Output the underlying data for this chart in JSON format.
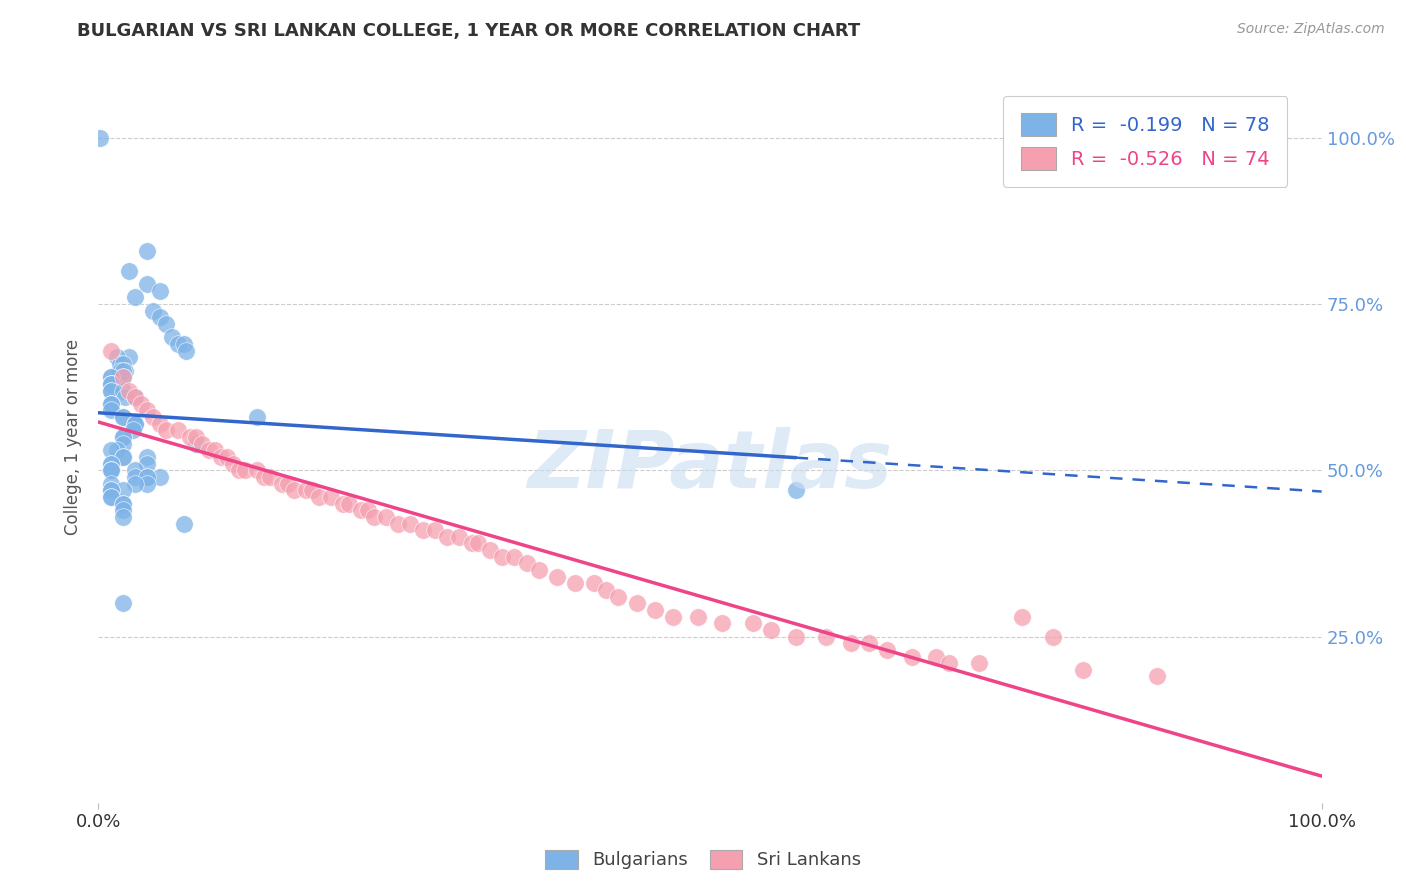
{
  "title": "BULGARIAN VS SRI LANKAN COLLEGE, 1 YEAR OR MORE CORRELATION CHART",
  "source_text": "Source: ZipAtlas.com",
  "ylabel": "College, 1 year or more",
  "blue_R": -0.199,
  "blue_N": 78,
  "pink_R": -0.526,
  "pink_N": 74,
  "blue_color": "#7EB3E8",
  "pink_color": "#F5A0B0",
  "blue_line_color": "#3366CC",
  "pink_line_color": "#EE4488",
  "background_color": "#FFFFFF",
  "grid_color": "#CCCCCC",
  "watermark": "ZIPatlas",
  "legend_label_blue": "Bulgarians",
  "legend_label_pink": "Sri Lankans",
  "blue_scatter_x": [
    0.001,
    0.04,
    0.025,
    0.04,
    0.05,
    0.03,
    0.045,
    0.05,
    0.055,
    0.06,
    0.065,
    0.07,
    0.072,
    0.025,
    0.015,
    0.018,
    0.02,
    0.022,
    0.018,
    0.02,
    0.02,
    0.01,
    0.01,
    0.012,
    0.01,
    0.01,
    0.01,
    0.01,
    0.01,
    0.02,
    0.022,
    0.03,
    0.01,
    0.01,
    0.01,
    0.01,
    0.13,
    0.02,
    0.02,
    0.03,
    0.03,
    0.03,
    0.028,
    0.02,
    0.02,
    0.08,
    0.02,
    0.015,
    0.01,
    0.02,
    0.02,
    0.04,
    0.04,
    0.01,
    0.01,
    0.01,
    0.01,
    0.01,
    0.03,
    0.04,
    0.03,
    0.05,
    0.04,
    0.04,
    0.01,
    0.03,
    0.02,
    0.57,
    0.01,
    0.01,
    0.01,
    0.01,
    0.02,
    0.02,
    0.02,
    0.02,
    0.07,
    0.02
  ],
  "blue_scatter_y": [
    1.0,
    0.83,
    0.8,
    0.78,
    0.77,
    0.76,
    0.74,
    0.73,
    0.72,
    0.7,
    0.69,
    0.69,
    0.68,
    0.67,
    0.67,
    0.66,
    0.66,
    0.65,
    0.65,
    0.65,
    0.64,
    0.64,
    0.64,
    0.63,
    0.63,
    0.63,
    0.63,
    0.62,
    0.62,
    0.62,
    0.61,
    0.61,
    0.6,
    0.6,
    0.6,
    0.59,
    0.58,
    0.58,
    0.58,
    0.57,
    0.57,
    0.57,
    0.56,
    0.55,
    0.55,
    0.54,
    0.54,
    0.53,
    0.53,
    0.52,
    0.52,
    0.52,
    0.51,
    0.51,
    0.51,
    0.5,
    0.5,
    0.5,
    0.5,
    0.49,
    0.49,
    0.49,
    0.49,
    0.48,
    0.48,
    0.48,
    0.47,
    0.47,
    0.47,
    0.47,
    0.46,
    0.46,
    0.45,
    0.45,
    0.44,
    0.43,
    0.42,
    0.3
  ],
  "pink_scatter_x": [
    0.01,
    0.02,
    0.025,
    0.03,
    0.035,
    0.04,
    0.045,
    0.05,
    0.055,
    0.065,
    0.075,
    0.08,
    0.085,
    0.09,
    0.095,
    0.1,
    0.105,
    0.11,
    0.115,
    0.12,
    0.13,
    0.135,
    0.14,
    0.15,
    0.155,
    0.16,
    0.17,
    0.175,
    0.18,
    0.19,
    0.2,
    0.205,
    0.215,
    0.22,
    0.225,
    0.235,
    0.245,
    0.255,
    0.265,
    0.275,
    0.285,
    0.295,
    0.305,
    0.31,
    0.32,
    0.33,
    0.34,
    0.35,
    0.36,
    0.375,
    0.39,
    0.405,
    0.415,
    0.425,
    0.44,
    0.455,
    0.47,
    0.49,
    0.51,
    0.535,
    0.55,
    0.57,
    0.595,
    0.615,
    0.63,
    0.645,
    0.665,
    0.685,
    0.695,
    0.72,
    0.755,
    0.78,
    0.805,
    0.865
  ],
  "pink_scatter_y": [
    0.68,
    0.64,
    0.62,
    0.61,
    0.6,
    0.59,
    0.58,
    0.57,
    0.56,
    0.56,
    0.55,
    0.55,
    0.54,
    0.53,
    0.53,
    0.52,
    0.52,
    0.51,
    0.5,
    0.5,
    0.5,
    0.49,
    0.49,
    0.48,
    0.48,
    0.47,
    0.47,
    0.47,
    0.46,
    0.46,
    0.45,
    0.45,
    0.44,
    0.44,
    0.43,
    0.43,
    0.42,
    0.42,
    0.41,
    0.41,
    0.4,
    0.4,
    0.39,
    0.39,
    0.38,
    0.37,
    0.37,
    0.36,
    0.35,
    0.34,
    0.33,
    0.33,
    0.32,
    0.31,
    0.3,
    0.29,
    0.28,
    0.28,
    0.27,
    0.27,
    0.26,
    0.25,
    0.25,
    0.24,
    0.24,
    0.23,
    0.22,
    0.22,
    0.21,
    0.21,
    0.28,
    0.25,
    0.2,
    0.19
  ],
  "xlim": [
    0.0,
    1.0
  ],
  "ylim": [
    0.0,
    1.1
  ],
  "ytick_positions": [
    0.25,
    0.5,
    0.75,
    1.0
  ],
  "ytick_labels_right": [
    "25.0%",
    "50.0%",
    "75.0%",
    "100.0%"
  ],
  "xtick_positions": [
    0.0,
    1.0
  ],
  "xtick_labels": [
    "0.0%",
    "100.0%"
  ]
}
